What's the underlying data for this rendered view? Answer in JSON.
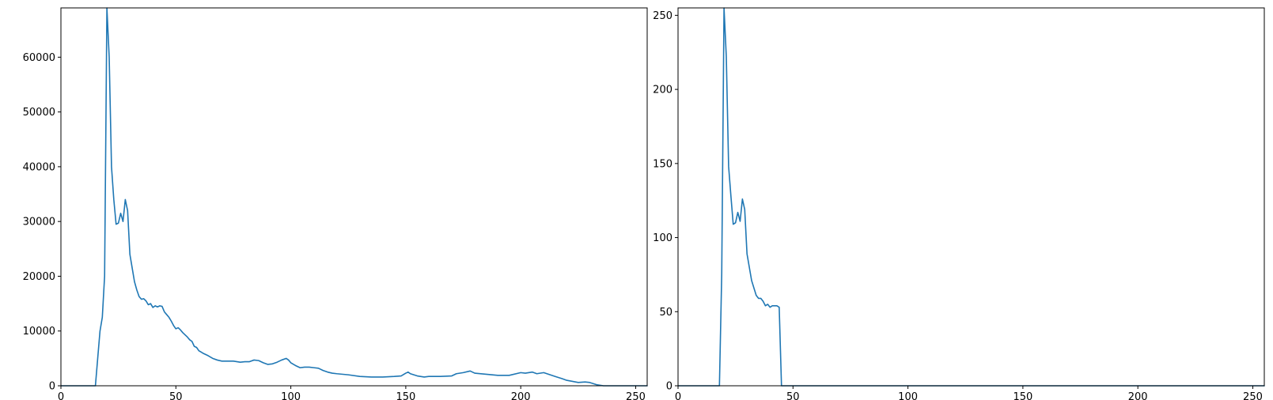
{
  "chart_data": [
    {
      "type": "line",
      "title": "",
      "xlabel": "",
      "ylabel": "",
      "xlim": [
        0,
        255
      ],
      "ylim": [
        0,
        69000
      ],
      "xticks": [
        0,
        50,
        100,
        150,
        200,
        250
      ],
      "yticks": [
        0,
        10000,
        20000,
        30000,
        40000,
        50000,
        60000
      ],
      "grid": false,
      "color": "#1f77b4",
      "series": [
        {
          "x": [
            0,
            15,
            16,
            17,
            18,
            19,
            20,
            21,
            22,
            23,
            24,
            25,
            26,
            27,
            28,
            29,
            30,
            31,
            32,
            33,
            34,
            35,
            36,
            37,
            38,
            39,
            40,
            41,
            42,
            43,
            44,
            45,
            46,
            47,
            48,
            49,
            50,
            51,
            52,
            53,
            54,
            55,
            56,
            57,
            58,
            59,
            60,
            62,
            64,
            66,
            68,
            70,
            72,
            75,
            78,
            80,
            82,
            84,
            86,
            88,
            90,
            92,
            94,
            96,
            98,
            99,
            100,
            102,
            104,
            106,
            108,
            110,
            112,
            114,
            116,
            118,
            120,
            125,
            130,
            135,
            140,
            145,
            148,
            150,
            151,
            152,
            155,
            158,
            160,
            165,
            170,
            172,
            175,
            178,
            180,
            185,
            190,
            195,
            200,
            202,
            205,
            207,
            210,
            215,
            218,
            220,
            225,
            228,
            230,
            233,
            236,
            240,
            245,
            250,
            255
          ],
          "y": [
            0,
            0,
            5000,
            10000,
            12500,
            20000,
            69000,
            60000,
            40000,
            34000,
            29500,
            29700,
            31500,
            30000,
            34000,
            32000,
            24000,
            21500,
            19000,
            17500,
            16300,
            15800,
            15900,
            15500,
            14800,
            15000,
            14300,
            14600,
            14400,
            14600,
            14500,
            13500,
            13000,
            12500,
            11800,
            11000,
            10400,
            10600,
            10200,
            9700,
            9300,
            8900,
            8400,
            8100,
            7200,
            7000,
            6400,
            5900,
            5500,
            5000,
            4700,
            4500,
            4500,
            4500,
            4300,
            4400,
            4400,
            4700,
            4600,
            4200,
            3900,
            4000,
            4300,
            4700,
            5000,
            4700,
            4200,
            3700,
            3300,
            3400,
            3400,
            3300,
            3200,
            2800,
            2500,
            2300,
            2200,
            2000,
            1700,
            1600,
            1600,
            1700,
            1800,
            2300,
            2500,
            2200,
            1800,
            1600,
            1700,
            1700,
            1800,
            2200,
            2400,
            2700,
            2300,
            2100,
            1900,
            1900,
            2400,
            2300,
            2500,
            2200,
            2400,
            1700,
            1300,
            1000,
            600,
            700,
            600,
            200,
            0,
            0,
            0,
            0,
            0
          ]
        }
      ]
    },
    {
      "type": "line",
      "title": "",
      "xlabel": "",
      "ylabel": "",
      "xlim": [
        0,
        255
      ],
      "ylim": [
        0,
        255
      ],
      "xticks": [
        0,
        50,
        100,
        150,
        200,
        250
      ],
      "yticks": [
        0,
        50,
        100,
        150,
        200,
        250
      ],
      "grid": false,
      "color": "#1f77b4",
      "series": [
        {
          "x": [
            0,
            18,
            19,
            20,
            21,
            22,
            23,
            24,
            25,
            26,
            27,
            28,
            29,
            30,
            31,
            32,
            33,
            34,
            35,
            36,
            37,
            38,
            39,
            40,
            41,
            42,
            43,
            44,
            45,
            50,
            100,
            150,
            200,
            255
          ],
          "y": [
            0,
            0,
            75,
            255,
            222,
            148,
            128,
            109,
            110,
            117,
            111,
            126,
            119,
            89,
            80,
            71,
            66,
            61,
            59,
            59,
            57,
            54,
            55,
            53,
            54,
            54,
            54,
            53,
            0,
            0,
            0,
            0,
            0,
            0
          ]
        }
      ]
    }
  ]
}
